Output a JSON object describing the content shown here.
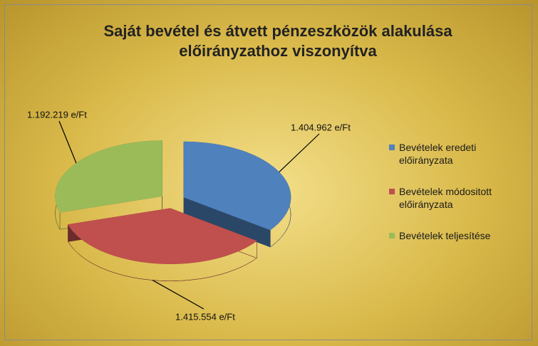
{
  "chart_data": {
    "type": "pie",
    "title": "Saját bevétel és átvett pénzeszközök alakulása előirányzathoz viszonyítva",
    "categories": [
      "Bevételek eredeti előirányzata",
      "Bevételek módositott előirányzata",
      "Bevételek teljesítése"
    ],
    "values": [
      1404962,
      1415554,
      1192219
    ],
    "value_labels": [
      "1.404.962 e/Ft",
      "1.415.554 e/Ft",
      "1.192.219 e/Ft"
    ],
    "colors": [
      "#4f81bd",
      "#c0504d",
      "#9bbb59"
    ],
    "legend": "right"
  }
}
